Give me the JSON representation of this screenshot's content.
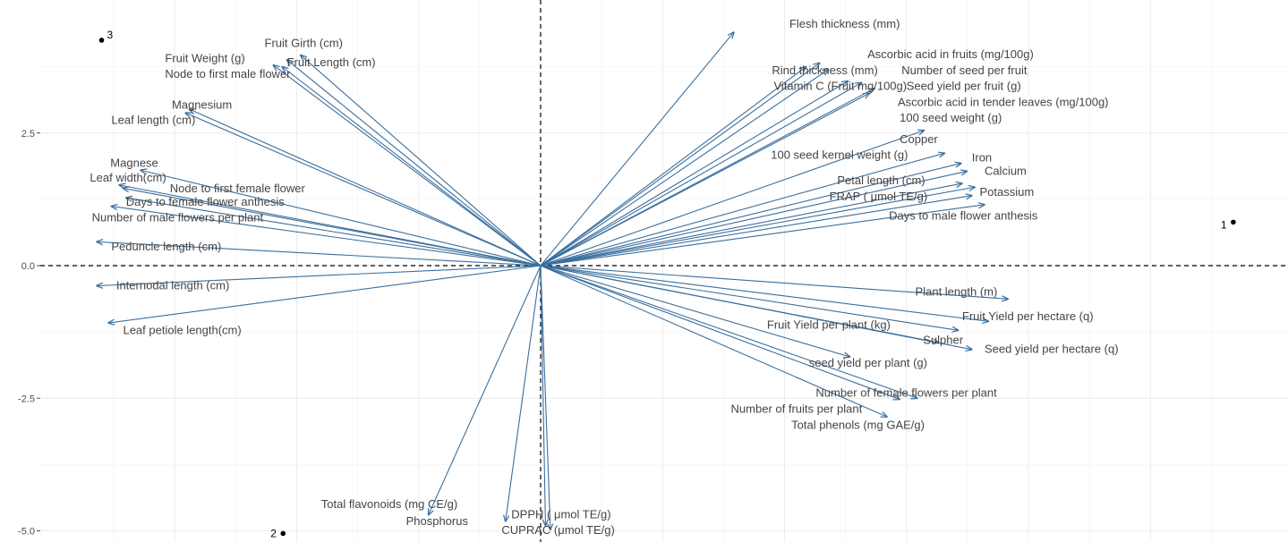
{
  "chart_data": {
    "type": "scatter",
    "subtype": "pca-biplot",
    "title": "",
    "xlabel": "",
    "ylabel": "",
    "xlim": [
      -4.65,
      7.3
    ],
    "ylim": [
      -5.05,
      4.85
    ],
    "y_ticks": [
      {
        "value": 2.5,
        "label": "2.5"
      },
      {
        "value": 0.0,
        "label": "0.0"
      },
      {
        "value": -2.5,
        "label": "-2.5"
      },
      {
        "value": -5.0,
        "label": "-5.0"
      }
    ],
    "grid": true,
    "reference_lines": {
      "x": 0,
      "y": 0,
      "style": "dashed"
    },
    "arrow_color": "#3b6f9e",
    "observations": [
      {
        "label": "1",
        "x": 7.1,
        "y": 0.82
      },
      {
        "label": "2",
        "x": -2.64,
        "y": -5.05
      },
      {
        "label": "3",
        "x": -4.5,
        "y": 4.25
      }
    ],
    "variables": [
      {
        "label": "Flesh thickness (mm)",
        "x": 1.98,
        "y": 4.4,
        "label_x": 2.55,
        "label_y": 4.55
      },
      {
        "label": "Ascorbic acid in fruits (mg/100g)",
        "x": 2.86,
        "y": 3.82,
        "label_x": 3.35,
        "label_y": 3.98
      },
      {
        "label": "Rind thickness (mm)",
        "x": 2.72,
        "y": 3.75,
        "label_x": 2.37,
        "label_y": 3.68
      },
      {
        "label": "Number of seed per fruit",
        "x": 2.95,
        "y": 3.7,
        "label_x": 3.7,
        "label_y": 3.68
      },
      {
        "label": "Vitamin C (Fruit mg/100g)",
        "x": 3.15,
        "y": 3.48,
        "label_x": 2.39,
        "label_y": 3.38
      },
      {
        "label": "Seed yield per fruit (g)",
        "x": 3.29,
        "y": 3.45,
        "label_x": 3.75,
        "label_y": 3.38
      },
      {
        "label": "Ascorbic acid in tender leaves (mg/100g)",
        "x": 3.42,
        "y": 3.34,
        "label_x": 3.66,
        "label_y": 3.08
      },
      {
        "label": "100 seed weight (g)",
        "x": 3.37,
        "y": 3.25,
        "label_x": 3.68,
        "label_y": 2.78
      },
      {
        "label": "Copper",
        "x": 3.93,
        "y": 2.55,
        "label_x": 3.68,
        "label_y": 2.38
      },
      {
        "label": "100 seed kernel weight (g)",
        "x": 4.14,
        "y": 2.12,
        "label_x": 2.36,
        "label_y": 2.08
      },
      {
        "label": "Iron",
        "x": 4.31,
        "y": 1.93,
        "label_x": 4.42,
        "label_y": 2.03
      },
      {
        "label": "Calcium",
        "x": 4.37,
        "y": 1.78,
        "label_x": 4.55,
        "label_y": 1.78
      },
      {
        "label": "Petal length (cm)",
        "x": 4.32,
        "y": 1.55,
        "label_x": 3.04,
        "label_y": 1.6
      },
      {
        "label": "FRAP ( μmol TE/g)",
        "x": 4.45,
        "y": 1.48,
        "label_x": 2.96,
        "label_y": 1.3
      },
      {
        "label": "Potassium",
        "x": 4.42,
        "y": 1.32,
        "label_x": 4.5,
        "label_y": 1.38
      },
      {
        "label": "Days to male flower anthesis",
        "x": 4.55,
        "y": 1.15,
        "label_x": 3.57,
        "label_y": 0.94
      },
      {
        "label": "Plant length (m)",
        "x": 4.79,
        "y": -0.63,
        "label_x": 3.84,
        "label_y": -0.5
      },
      {
        "label": "Fruit Yield per hectare (q)",
        "x": 4.59,
        "y": -1.05,
        "label_x": 4.32,
        "label_y": -0.96
      },
      {
        "label": "Fruit Yield per plant (kg)",
        "x": 4.28,
        "y": -1.22,
        "label_x": 2.32,
        "label_y": -1.12
      },
      {
        "label": "Sulpher",
        "x": 4.08,
        "y": -1.45,
        "label_x": 3.92,
        "label_y": -1.41
      },
      {
        "label": "Seed yield per hectare (q)",
        "x": 4.42,
        "y": -1.58,
        "label_x": 4.55,
        "label_y": -1.58
      },
      {
        "label": "seed yield per plant (g)",
        "x": 3.17,
        "y": -1.72,
        "label_x": 2.75,
        "label_y": -1.84
      },
      {
        "label": "Number of female flowers per plant",
        "x": 3.86,
        "y": -2.5,
        "label_x": 2.82,
        "label_y": -2.4
      },
      {
        "label": "Number of fruits per plant",
        "x": 3.68,
        "y": -2.52,
        "label_x": 1.95,
        "label_y": -2.71
      },
      {
        "label": "Total phenols (mg GAE/g)",
        "x": 3.55,
        "y": -2.85,
        "label_x": 2.57,
        "label_y": -3.01
      },
      {
        "label": "Total flavonoids (mg CE/g)",
        "x": -1.15,
        "y": -4.7,
        "label_x": -2.25,
        "label_y": -4.5
      },
      {
        "label": "Phosphorus",
        "x": -0.36,
        "y": -4.82,
        "label_x": -1.38,
        "label_y": -4.82
      },
      {
        "label": "DPPH ( μmol TE/g)",
        "x": 0.05,
        "y": -4.9,
        "label_x": -0.3,
        "label_y": -4.7
      },
      {
        "label": "CUPRAC (μmol TE/g)",
        "x": 0.1,
        "y": -4.98,
        "label_x": -0.4,
        "label_y": -4.99
      },
      {
        "label": "Fruit Girth (cm)",
        "x": -2.46,
        "y": 3.97,
        "label_x": -2.83,
        "label_y": 4.19
      },
      {
        "label": "Fruit Weight (g)",
        "x": -2.74,
        "y": 3.78,
        "label_x": -3.85,
        "label_y": 3.9
      },
      {
        "label": "Fruit Length (cm)",
        "x": -2.6,
        "y": 3.88,
        "label_x": -2.6,
        "label_y": 3.83
      },
      {
        "label": "Node to first male flower",
        "x": -2.65,
        "y": 3.75,
        "label_x": -3.85,
        "label_y": 3.61
      },
      {
        "label": "Magnesium",
        "x": -3.6,
        "y": 2.95,
        "label_x": -3.78,
        "label_y": 3.03
      },
      {
        "label": "Leaf length (cm)",
        "x": -3.64,
        "y": 2.88,
        "label_x": -4.4,
        "label_y": 2.74
      },
      {
        "label": "Magnese",
        "x": -4.1,
        "y": 1.8,
        "label_x": -4.41,
        "label_y": 1.93
      },
      {
        "label": "Leaf width(cm)",
        "x": -4.32,
        "y": 1.52,
        "label_x": -4.62,
        "label_y": 1.65
      },
      {
        "label": "Node to first female flower",
        "x": -4.28,
        "y": 1.46,
        "label_x": -3.8,
        "label_y": 1.45
      },
      {
        "label": "Days to female flower anthesis",
        "x": -4.25,
        "y": 1.28,
        "label_x": -4.25,
        "label_y": 1.2
      },
      {
        "label": "Number of male flowers per plant",
        "x": -4.4,
        "y": 1.12,
        "label_x": -4.6,
        "label_y": 0.9
      },
      {
        "label": "Peduncle length (cm)",
        "x": -4.55,
        "y": 0.45,
        "label_x": -4.4,
        "label_y": 0.35
      },
      {
        "label": "Internodal length (cm)",
        "x": -4.55,
        "y": -0.38,
        "label_x": -4.35,
        "label_y": -0.38
      },
      {
        "label": "Leaf petiole length(cm)",
        "x": -4.43,
        "y": -1.08,
        "label_x": -4.28,
        "label_y": -1.22
      }
    ]
  }
}
